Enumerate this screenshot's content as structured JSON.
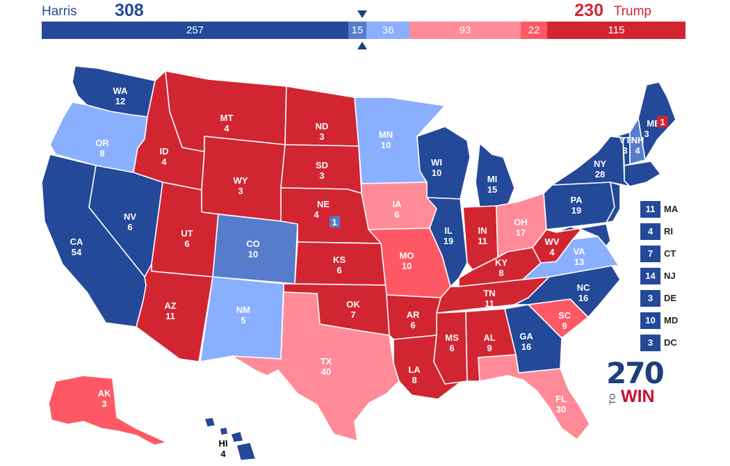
{
  "header": {
    "harris_name": "Harris",
    "harris_total": "308",
    "trump_total": "230",
    "trump_name": "Trump",
    "bar_segments": [
      {
        "rating": "safe-d",
        "value": 257,
        "label": "257"
      },
      {
        "rating": "likely-d",
        "value": 15,
        "label": "15"
      },
      {
        "rating": "lean-d",
        "value": 36,
        "label": "36"
      },
      {
        "rating": "lean-r",
        "value": 93,
        "label": "93"
      },
      {
        "rating": "likely-r",
        "value": 22,
        "label": "22"
      },
      {
        "rating": "safe-r",
        "value": 115,
        "label": "115"
      }
    ],
    "threshold": 270
  },
  "colors": {
    "safe_d": "#244999",
    "likely_d": "#577ccc",
    "lean_d": "#8aafff",
    "lean_r": "#ff8b98",
    "likely_r": "#ff5865",
    "safe_r": "#d22532"
  },
  "states": {
    "WA": {
      "abbr": "WA",
      "ev": "12",
      "rating": "safe-d"
    },
    "OR": {
      "abbr": "OR",
      "ev": "8",
      "rating": "lean-d"
    },
    "CA": {
      "abbr": "CA",
      "ev": "54",
      "rating": "safe-d"
    },
    "NV": {
      "abbr": "NV",
      "ev": "6",
      "rating": "safe-d"
    },
    "ID": {
      "abbr": "ID",
      "ev": "4",
      "rating": "safe-r"
    },
    "MT": {
      "abbr": "MT",
      "ev": "4",
      "rating": "safe-r"
    },
    "WY": {
      "abbr": "WY",
      "ev": "3",
      "rating": "safe-r"
    },
    "UT": {
      "abbr": "UT",
      "ev": "6",
      "rating": "safe-r"
    },
    "AZ": {
      "abbr": "AZ",
      "ev": "11",
      "rating": "safe-r"
    },
    "CO": {
      "abbr": "CO",
      "ev": "10",
      "rating": "likely-d"
    },
    "NM": {
      "abbr": "NM",
      "ev": "5",
      "rating": "lean-d"
    },
    "ND": {
      "abbr": "ND",
      "ev": "3",
      "rating": "safe-r"
    },
    "SD": {
      "abbr": "SD",
      "ev": "3",
      "rating": "safe-r"
    },
    "NE": {
      "abbr": "NE",
      "ev": "4",
      "rating": "safe-r",
      "district": "1"
    },
    "KS": {
      "abbr": "KS",
      "ev": "6",
      "rating": "safe-r"
    },
    "OK": {
      "abbr": "OK",
      "ev": "7",
      "rating": "safe-r"
    },
    "TX": {
      "abbr": "TX",
      "ev": "40",
      "rating": "lean-r"
    },
    "MN": {
      "abbr": "MN",
      "ev": "10",
      "rating": "lean-d"
    },
    "IA": {
      "abbr": "IA",
      "ev": "6",
      "rating": "lean-r"
    },
    "MO": {
      "abbr": "MO",
      "ev": "10",
      "rating": "likely-r"
    },
    "AR": {
      "abbr": "AR",
      "ev": "6",
      "rating": "safe-r"
    },
    "LA": {
      "abbr": "LA",
      "ev": "8",
      "rating": "safe-r"
    },
    "WI": {
      "abbr": "WI",
      "ev": "10",
      "rating": "safe-d"
    },
    "IL": {
      "abbr": "IL",
      "ev": "19",
      "rating": "safe-d"
    },
    "MI": {
      "abbr": "MI",
      "ev": "15",
      "rating": "safe-d"
    },
    "IN": {
      "abbr": "IN",
      "ev": "11",
      "rating": "safe-r"
    },
    "OH": {
      "abbr": "OH",
      "ev": "17",
      "rating": "lean-r"
    },
    "KY": {
      "abbr": "KY",
      "ev": "8",
      "rating": "safe-r"
    },
    "TN": {
      "abbr": "TN",
      "ev": "11",
      "rating": "safe-r"
    },
    "MS": {
      "abbr": "MS",
      "ev": "6",
      "rating": "safe-r"
    },
    "AL": {
      "abbr": "AL",
      "ev": "9",
      "rating": "safe-r"
    },
    "GA": {
      "abbr": "GA",
      "ev": "16",
      "rating": "safe-d"
    },
    "FL": {
      "abbr": "FL",
      "ev": "30",
      "rating": "lean-r"
    },
    "SC": {
      "abbr": "SC",
      "ev": "9",
      "rating": "likely-r"
    },
    "NC": {
      "abbr": "NC",
      "ev": "16",
      "rating": "safe-d"
    },
    "VA": {
      "abbr": "VA",
      "ev": "13",
      "rating": "lean-d"
    },
    "WV": {
      "abbr": "WV",
      "ev": "4",
      "rating": "safe-r"
    },
    "PA": {
      "abbr": "PA",
      "ev": "19",
      "rating": "safe-d"
    },
    "NY": {
      "abbr": "NY",
      "ev": "28",
      "rating": "safe-d"
    },
    "VT": {
      "abbr": "VT",
      "ev": "3",
      "rating": "safe-d"
    },
    "NH": {
      "abbr": "NH",
      "ev": "4",
      "rating": "likely-d"
    },
    "ME": {
      "abbr": "ME",
      "ev": "3",
      "rating": "safe-d",
      "district": "1"
    },
    "AK": {
      "abbr": "AK",
      "ev": "3",
      "rating": "likely-r"
    },
    "HI": {
      "abbr": "HI",
      "ev": "4",
      "rating": "safe-d"
    }
  },
  "small_states": [
    {
      "abbr": "MA",
      "ev": "11",
      "rating": "safe-d"
    },
    {
      "abbr": "RI",
      "ev": "4",
      "rating": "safe-d"
    },
    {
      "abbr": "CT",
      "ev": "7",
      "rating": "safe-d"
    },
    {
      "abbr": "NJ",
      "ev": "14",
      "rating": "safe-d"
    },
    {
      "abbr": "DE",
      "ev": "3",
      "rating": "safe-d"
    },
    {
      "abbr": "MD",
      "ev": "10",
      "rating": "safe-d"
    },
    {
      "abbr": "DC",
      "ev": "3",
      "rating": "safe-d"
    }
  ],
  "logo": {
    "number": "270",
    "to": "TO",
    "win": "WIN"
  }
}
